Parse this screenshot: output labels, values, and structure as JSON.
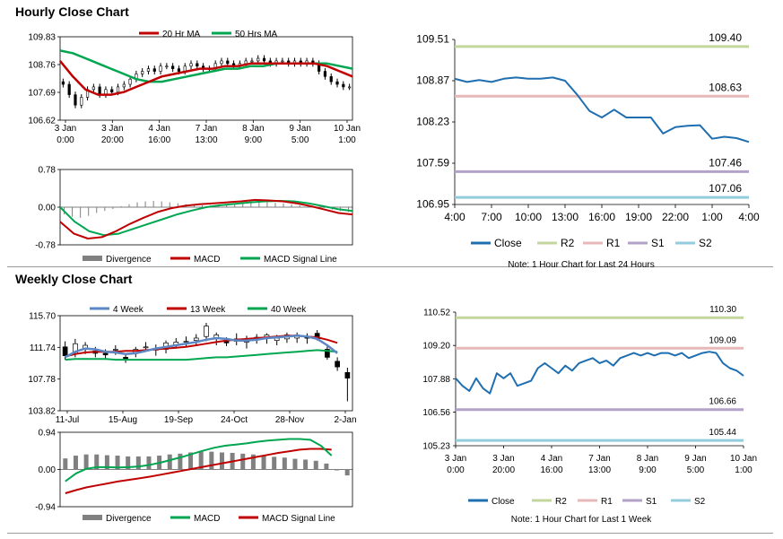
{
  "page": {
    "hourly_title": "Hourly Close Chart",
    "weekly_title": "Weekly Close Chart"
  },
  "colors": {
    "red": "#c00000",
    "green": "#00a650",
    "blue": "#5b87c5",
    "close": "#1f6fb0",
    "r2": "#c3d69b",
    "r1": "#e6b9b8",
    "s1": "#b3a2c7",
    "s2": "#93cddd",
    "candle": "#000000",
    "bar": "#808080"
  },
  "chart_data": [
    {
      "id": "hourly_price",
      "type": "candlestick",
      "legend": [
        "20 Hr MA",
        "50 Hrs MA"
      ],
      "yticks": [
        "109.83",
        "108.76",
        "107.69",
        "106.62"
      ],
      "ylim": [
        106.62,
        109.83
      ],
      "xticks": [
        [
          "3 Jan",
          "0:00"
        ],
        [
          "3 Jan",
          "20:00"
        ],
        [
          "4 Jan",
          "16:00"
        ],
        [
          "7 Jan",
          "13:00"
        ],
        [
          "8 Jan",
          "9:00"
        ],
        [
          "9 Jan",
          "5:00"
        ],
        [
          "10 Jan",
          "1:00"
        ]
      ],
      "close": [
        108.0,
        107.6,
        107.2,
        107.5,
        107.8,
        107.9,
        107.6,
        107.8,
        107.7,
        107.9,
        108.0,
        108.2,
        108.4,
        108.5,
        108.6,
        108.5,
        108.7,
        108.7,
        108.6,
        108.5,
        108.7,
        108.8,
        108.7,
        108.6,
        108.6,
        108.8,
        108.9,
        108.8,
        108.7,
        108.8,
        108.9,
        108.9,
        109.0,
        108.9,
        108.8,
        108.9,
        108.9,
        108.8,
        108.9,
        108.8,
        108.9,
        108.8,
        108.5,
        108.3,
        108.1,
        108.0,
        107.9,
        107.9
      ],
      "ma20": [
        108.9,
        108.3,
        107.8,
        107.6,
        107.6,
        107.7,
        107.9,
        108.1,
        108.3,
        108.4,
        108.5,
        108.6,
        108.6,
        108.7,
        108.7,
        108.8,
        108.8,
        108.8,
        108.8,
        108.8,
        108.8,
        108.7,
        108.5,
        108.3
      ],
      "ma50": [
        109.3,
        109.2,
        109.0,
        108.8,
        108.6,
        108.4,
        108.2,
        108.1,
        108.1,
        108.2,
        108.3,
        108.4,
        108.5,
        108.6,
        108.6,
        108.7,
        108.7,
        108.8,
        108.8,
        108.8,
        108.8,
        108.8,
        108.7,
        108.6
      ]
    },
    {
      "id": "hourly_macd",
      "type": "macd",
      "legend": [
        "Divergence",
        "MACD",
        "MACD Signal Line"
      ],
      "yticks": [
        "0.78",
        "0.00",
        "-0.78"
      ],
      "ylim": [
        -0.78,
        0.78
      ],
      "divergence": [
        -0.15,
        -0.2,
        -0.22,
        -0.18,
        -0.12,
        -0.08,
        -0.04,
        0.02,
        0.06,
        0.1,
        0.12,
        0.13,
        0.12,
        0.1,
        0.08,
        0.06,
        0.05,
        0.04,
        0.04,
        0.05,
        0.06,
        0.07,
        0.08,
        0.09,
        0.1,
        0.1,
        0.09,
        0.08,
        0.06,
        0.04,
        0.02,
        0.0,
        -0.02,
        -0.05,
        -0.08,
        -0.1
      ],
      "macd": [
        -0.3,
        -0.55,
        -0.65,
        -0.62,
        -0.5,
        -0.35,
        -0.22,
        -0.1,
        -0.02,
        0.03,
        0.06,
        0.08,
        0.1,
        0.12,
        0.15,
        0.14,
        0.12,
        0.08,
        0.02,
        -0.05,
        -0.12,
        -0.15
      ],
      "signal": [
        0.0,
        -0.3,
        -0.5,
        -0.58,
        -0.55,
        -0.45,
        -0.35,
        -0.25,
        -0.15,
        -0.07,
        0.0,
        0.04,
        0.07,
        0.1,
        0.12,
        0.13,
        0.12,
        0.08,
        0.02,
        -0.04,
        -0.08
      ]
    },
    {
      "id": "hourly_levels",
      "type": "line",
      "legend": [
        "Close",
        "R2",
        "R1",
        "S1",
        "S2"
      ],
      "yticks": [
        "109.51",
        "108.87",
        "108.23",
        "107.59",
        "106.95"
      ],
      "ylim": [
        106.95,
        109.51
      ],
      "xticks": [
        "4:00",
        "7:00",
        "10:00",
        "13:00",
        "16:00",
        "19:00",
        "22:00",
        "1:00",
        "4:00"
      ],
      "close": [
        108.9,
        108.85,
        108.88,
        108.85,
        108.9,
        108.92,
        108.9,
        108.9,
        108.92,
        108.87,
        108.65,
        108.4,
        108.3,
        108.42,
        108.3,
        108.3,
        108.3,
        108.05,
        108.15,
        108.17,
        108.18,
        107.97,
        108.0,
        107.98,
        107.92
      ],
      "levels": {
        "R2": 109.4,
        "R1": 108.63,
        "S1": 107.46,
        "S2": 107.06
      },
      "level_labels": [
        "109.40",
        "108.63",
        "107.46",
        "107.06"
      ],
      "note": "Note: 1 Hour Chart for Last 24 Hours"
    },
    {
      "id": "weekly_price",
      "type": "candlestick",
      "legend": [
        "4 Week",
        "13 Week",
        "40 Week"
      ],
      "yticks": [
        "115.70",
        "111.74",
        "107.78",
        "103.82"
      ],
      "ylim": [
        103.82,
        115.7
      ],
      "xticks": [
        "11-Jul",
        "15-Aug",
        "19-Sep",
        "24-Oct",
        "28-Nov",
        "2-Jan"
      ],
      "candles": [
        [
          111.8,
          112.5,
          110.2,
          110.7
        ],
        [
          111.0,
          112.8,
          110.5,
          112.2
        ],
        [
          111.6,
          112.4,
          110.9,
          112.0
        ],
        [
          111.3,
          111.8,
          110.5,
          111.0
        ],
        [
          111.0,
          111.5,
          110.2,
          110.8
        ],
        [
          111.4,
          112.0,
          110.8,
          111.5
        ],
        [
          110.5,
          111.0,
          109.8,
          110.2
        ],
        [
          111.0,
          111.8,
          110.5,
          111.5
        ],
        [
          111.8,
          112.4,
          111.2,
          111.8
        ],
        [
          111.4,
          112.1,
          110.7,
          111.6
        ],
        [
          111.5,
          112.6,
          111.0,
          112.3
        ],
        [
          112.0,
          112.9,
          111.6,
          112.4
        ],
        [
          112.4,
          113.1,
          111.8,
          112.5
        ],
        [
          112.6,
          113.4,
          111.9,
          112.9
        ],
        [
          113.1,
          114.8,
          112.5,
          114.4
        ],
        [
          112.9,
          113.6,
          112.0,
          113.3
        ],
        [
          112.5,
          113.0,
          111.9,
          112.3
        ],
        [
          112.5,
          113.5,
          112.0,
          112.8
        ],
        [
          112.5,
          113.2,
          111.6,
          112.5
        ],
        [
          112.8,
          113.4,
          112.2,
          113.0
        ],
        [
          112.9,
          113.5,
          112.2,
          113.3
        ],
        [
          112.6,
          113.3,
          112.0,
          112.9
        ],
        [
          112.8,
          113.6,
          112.3,
          113.3
        ],
        [
          112.9,
          113.6,
          112.3,
          113.3
        ],
        [
          113.0,
          113.5,
          112.2,
          112.9
        ],
        [
          113.5,
          113.9,
          112.6,
          112.8
        ],
        [
          111.5,
          112.0,
          110.2,
          110.5
        ],
        [
          110.0,
          110.5,
          108.8,
          109.3
        ],
        [
          108.6,
          109.2,
          105.0,
          107.9
        ]
      ],
      "ma4": [
        110.5,
        111.2,
        111.6,
        111.5,
        111.2,
        111.1,
        110.9,
        111.0,
        111.3,
        111.6,
        111.8,
        112.0,
        112.2,
        112.4,
        112.7,
        112.9,
        112.8,
        112.6,
        112.6,
        112.7,
        112.9,
        113.0,
        113.1,
        113.2,
        113.1,
        112.8,
        112.0,
        111.0
      ],
      "ma13": [
        110.6,
        110.9,
        111.1,
        111.2,
        111.2,
        111.2,
        111.3,
        111.3,
        111.4,
        111.5,
        111.6,
        111.7,
        111.8,
        112.0,
        112.2,
        112.4,
        112.6,
        112.7,
        112.8,
        112.9,
        113.0,
        113.1,
        113.2,
        113.2,
        113.1,
        113.0,
        112.7,
        112.3
      ],
      "ma40": [
        110.2,
        110.3,
        110.3,
        110.3,
        110.3,
        110.2,
        110.2,
        110.2,
        110.2,
        110.2,
        110.2,
        110.2,
        110.2,
        110.3,
        110.4,
        110.5,
        110.5,
        110.6,
        110.7,
        110.8,
        110.9,
        111.0,
        111.1,
        111.2,
        111.3,
        111.4,
        111.3,
        111.2
      ]
    },
    {
      "id": "weekly_macd",
      "type": "macd",
      "legend": [
        "Divergence",
        "MACD",
        "MACD Signal Line"
      ],
      "yticks": [
        "0.94",
        "0.00",
        "-0.94"
      ],
      "ylim": [
        -0.94,
        0.94
      ],
      "divergence": [
        0.28,
        0.35,
        0.38,
        0.38,
        0.36,
        0.35,
        0.33,
        0.33,
        0.33,
        0.35,
        0.38,
        0.4,
        0.43,
        0.45,
        0.45,
        0.43,
        0.42,
        0.4,
        0.38,
        0.35,
        0.32,
        0.3,
        0.27,
        0.25,
        0.22,
        0.15,
        0.0,
        -0.15
      ],
      "macd": [
        -0.3,
        -0.1,
        0.02,
        0.06,
        0.06,
        0.05,
        0.06,
        0.08,
        0.12,
        0.18,
        0.25,
        0.32,
        0.4,
        0.48,
        0.55,
        0.6,
        0.63,
        0.66,
        0.7,
        0.73,
        0.75,
        0.77,
        0.77,
        0.75,
        0.6,
        0.35
      ],
      "signal": [
        -0.6,
        -0.52,
        -0.45,
        -0.4,
        -0.35,
        -0.3,
        -0.26,
        -0.22,
        -0.18,
        -0.13,
        -0.08,
        -0.03,
        0.02,
        0.07,
        0.12,
        0.17,
        0.22,
        0.27,
        0.32,
        0.37,
        0.42,
        0.46,
        0.5,
        0.52,
        0.52,
        0.5
      ]
    },
    {
      "id": "weekly_levels",
      "type": "line",
      "legend": [
        "Close",
        "R2",
        "R1",
        "S1",
        "S2"
      ],
      "yticks": [
        "110.52",
        "109.20",
        "107.88",
        "106.56",
        "105.23"
      ],
      "ylim": [
        105.23,
        110.52
      ],
      "xticks": [
        [
          "3 Jan",
          "0:00"
        ],
        [
          "3 Jan",
          "20:00"
        ],
        [
          "4 Jan",
          "16:00"
        ],
        [
          "7 Jan",
          "13:00"
        ],
        [
          "8 Jan",
          "9:00"
        ],
        [
          "9 Jan",
          "5:00"
        ],
        [
          "10 Jan",
          "1:00"
        ]
      ],
      "close": [
        107.9,
        107.6,
        107.4,
        107.9,
        107.5,
        107.3,
        108.1,
        107.9,
        108.1,
        107.6,
        107.7,
        107.8,
        108.3,
        108.5,
        108.3,
        108.1,
        108.4,
        108.2,
        108.5,
        108.6,
        108.7,
        108.5,
        108.6,
        108.4,
        108.7,
        108.8,
        108.9,
        108.8,
        108.9,
        108.8,
        108.9,
        108.9,
        108.8,
        108.9,
        108.7,
        108.8,
        108.9,
        108.95,
        108.9,
        108.5,
        108.3,
        108.2,
        108.0
      ],
      "levels": {
        "R2": 110.3,
        "R1": 109.09,
        "S1": 106.66,
        "S2": 105.44
      },
      "level_labels": [
        "110.30",
        "109.09",
        "106.66",
        "105.44"
      ],
      "note": "Note: 1 Hour Chart for Last 1 Week"
    }
  ]
}
